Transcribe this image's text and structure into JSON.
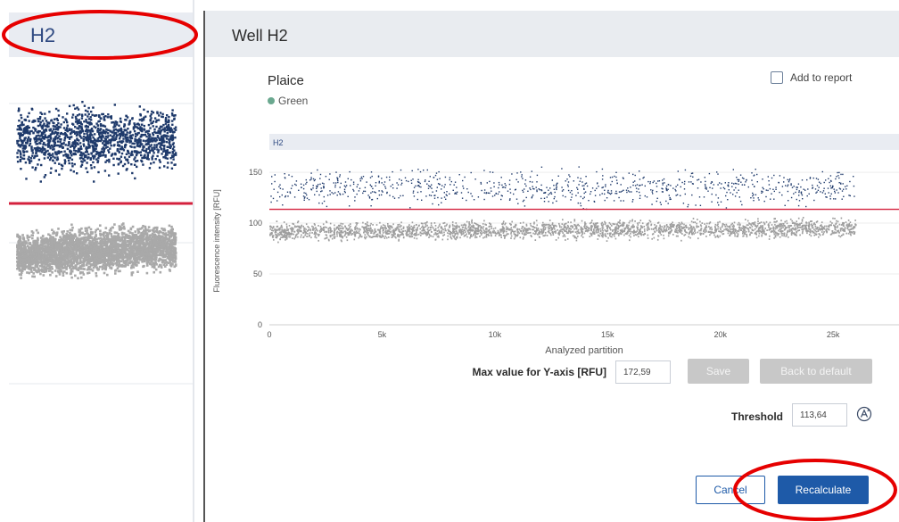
{
  "left_panel": {
    "title": "H2",
    "colors": {
      "positive": "#1f3a6b",
      "negative": "#a9a9a9",
      "threshold": "#d4213d"
    }
  },
  "dialog": {
    "title": "Well H2",
    "target": "Plaice",
    "dye": "Green",
    "dye_color": "#6aa88f",
    "add_to_report_label": "Add to report",
    "add_to_report_checked": false,
    "max_y_label": "Max value for Y-axis [RFU]",
    "max_y_value": "172,59",
    "save_label": "Save",
    "back_to_default_label": "Back to default",
    "threshold_label": "Threshold",
    "threshold_value": "113,64",
    "auto_threshold_icon": "auto-threshold-icon",
    "cancel_label": "Cancel",
    "recalculate_label": "Recalculate",
    "accent_color": "#1e5aa8"
  },
  "chart_data": {
    "type": "scatter",
    "title": "H2",
    "xlabel": "Analyzed partition",
    "ylabel": "Fluorescence intensity [RFU]",
    "xlim": [
      0,
      28000
    ],
    "ylim": [
      0,
      165
    ],
    "x_ticks": [
      0,
      5000,
      10000,
      15000,
      20000,
      25000
    ],
    "x_tick_labels": [
      "0",
      "5k",
      "10k",
      "15k",
      "20k",
      "25k"
    ],
    "y_ticks": [
      0,
      50,
      100,
      150
    ],
    "y_tick_labels": [
      "0",
      "50",
      "100",
      "150"
    ],
    "threshold": 113.64,
    "series": [
      {
        "x_range": [
          0,
          26000
        ],
        "y_center": 135,
        "y_spread": 8,
        "color": "#1f3a6b"
      },
      {
        "x_range": [
          0,
          26000
        ],
        "y_center": 92,
        "y_spread": 4,
        "color": "#9e9e9e"
      }
    ]
  }
}
